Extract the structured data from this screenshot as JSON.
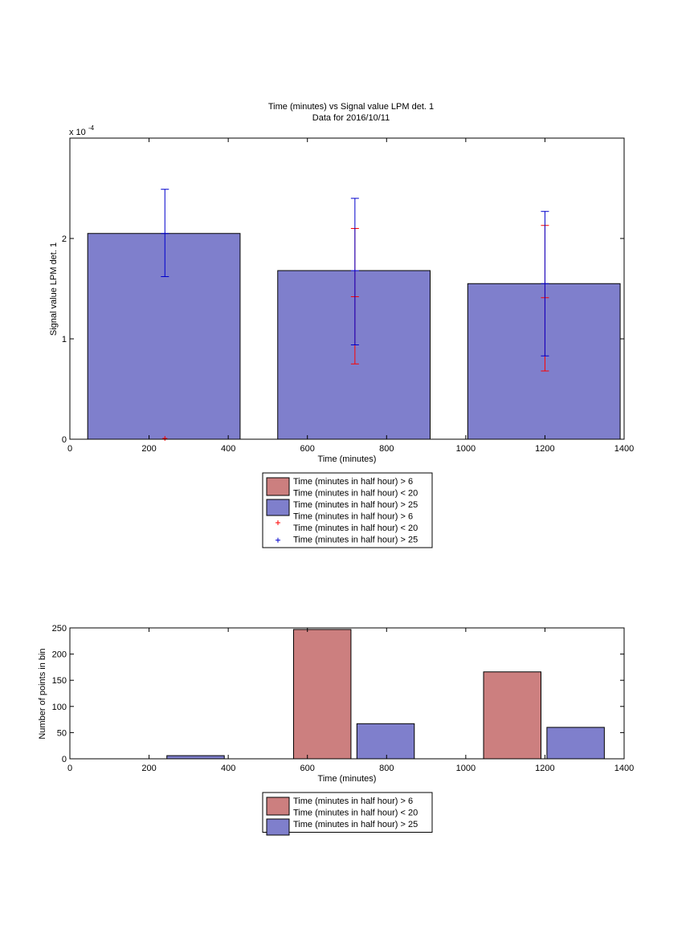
{
  "colors": {
    "red_bar": "#cc7f7f",
    "blue_bar": "#7f7fcc",
    "red_marker": "#ff0000",
    "blue_marker": "#0000cc",
    "axis": "#000000"
  },
  "chart_data": [
    {
      "type": "bar",
      "title": "Time (minutes) vs Signal value LPM det. 1",
      "subtitle": "Data for 2016/10/11",
      "xlabel": "Time (minutes)",
      "ylabel": "Signal value LPM det. 1",
      "exponent_label": "x 10",
      "exponent_power": "-4",
      "xlim": [
        0,
        1400
      ],
      "ylim": [
        0,
        3.0
      ],
      "xticks": [
        "0",
        "200",
        "400",
        "600",
        "800",
        "1000",
        "1200",
        "1400"
      ],
      "yticks": [
        "0",
        "1",
        "2"
      ],
      "grid": false,
      "bars": [
        {
          "x_start": 45,
          "x_end": 430,
          "value": 2.05
        },
        {
          "x_start": 525,
          "x_end": 910,
          "value": 1.68
        },
        {
          "x_start": 1005,
          "x_end": 1390,
          "value": 1.55
        }
      ],
      "errorbars": [
        {
          "series": "Time (minutes in half hour) > 25",
          "color": "blue_marker",
          "x": 240,
          "mean": 2.05,
          "low": 1.62,
          "high": 2.49
        },
        {
          "series": "Time (minutes in half hour) > 25",
          "color": "blue_marker",
          "x": 720,
          "mean": 1.68,
          "low": 0.94,
          "high": 2.4
        },
        {
          "series": "Time (minutes in half hour) > 25",
          "color": "blue_marker",
          "x": 1200,
          "mean": 1.55,
          "low": 0.83,
          "high": 2.27
        },
        {
          "series": "Time (minutes in half hour) > 6 Time (minutes in half hour) < 20",
          "color": "red_marker",
          "x": 720,
          "mean": 1.42,
          "low": 0.75,
          "high": 2.1
        },
        {
          "series": "Time (minutes in half hour) > 6 Time (minutes in half hour) < 20",
          "color": "red_marker",
          "x": 1200,
          "mean": 1.41,
          "low": 0.68,
          "high": 2.13
        }
      ],
      "point_markers": [
        {
          "color": "red_marker",
          "x": 240,
          "y": 0.0
        }
      ],
      "legend": [
        {
          "kind": "patch",
          "color": "red_bar",
          "lines": [
            "Time (minutes in half hour) > 6",
            "Time (minutes in half hour) < 20"
          ]
        },
        {
          "kind": "patch",
          "color": "blue_bar",
          "lines": [
            "Time (minutes in half hour) > 25"
          ]
        },
        {
          "kind": "marker",
          "color": "red_marker",
          "lines": [
            "Time (minutes in half hour) > 6",
            "Time (minutes in half hour) < 20"
          ]
        },
        {
          "kind": "marker",
          "color": "blue_marker",
          "lines": [
            "Time (minutes in half hour) > 25"
          ]
        }
      ],
      "legend_position": "below"
    },
    {
      "type": "bar",
      "xlabel": "Time (minutes)",
      "ylabel": "Number of points in bin",
      "xlim": [
        0,
        1400
      ],
      "ylim": [
        0,
        250
      ],
      "xticks": [
        "0",
        "200",
        "400",
        "600",
        "800",
        "1000",
        "1200",
        "1400"
      ],
      "yticks": [
        "0",
        "50",
        "100",
        "150",
        "200",
        "250"
      ],
      "grid": false,
      "bars": [
        {
          "series": "Time (minutes in half hour) > 25",
          "color": "blue_bar",
          "x_start": 245,
          "x_end": 390,
          "value": 6
        },
        {
          "series": "Time (minutes in half hour) > 6 Time (minutes in half hour) < 20",
          "color": "red_bar",
          "x_start": 565,
          "x_end": 710,
          "value": 247
        },
        {
          "series": "Time (minutes in half hour) > 25",
          "color": "blue_bar",
          "x_start": 725,
          "x_end": 870,
          "value": 67
        },
        {
          "series": "Time (minutes in half hour) > 6 Time (minutes in half hour) < 20",
          "color": "red_bar",
          "x_start": 1045,
          "x_end": 1190,
          "value": 166
        },
        {
          "series": "Time (minutes in half hour) > 25",
          "color": "blue_bar",
          "x_start": 1205,
          "x_end": 1350,
          "value": 60
        }
      ],
      "legend": [
        {
          "kind": "patch",
          "color": "red_bar",
          "lines": [
            "Time (minutes in half hour) > 6",
            "Time (minutes in half hour) < 20"
          ]
        },
        {
          "kind": "patch",
          "color": "blue_bar",
          "lines": [
            "Time (minutes in half hour) > 25"
          ]
        }
      ],
      "legend_position": "below"
    }
  ]
}
